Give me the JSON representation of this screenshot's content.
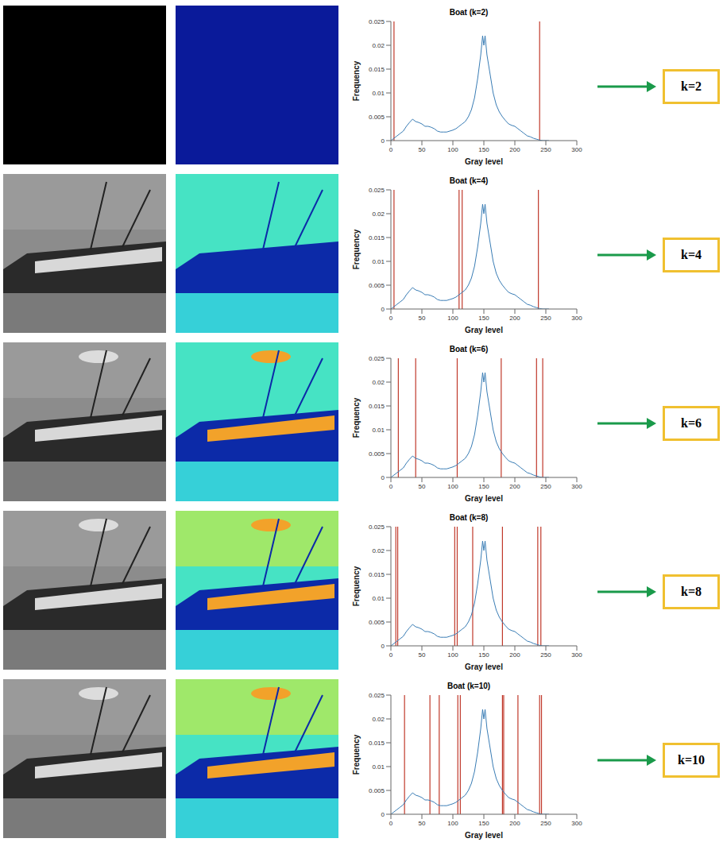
{
  "chart_data": [
    {
      "type": "line",
      "title": "Boat (k=2)",
      "annotation": "k=2",
      "xlabel": "Gray level",
      "ylabel": "Frequency",
      "color": "#3a7db5",
      "x": [
        0,
        5,
        10,
        15,
        20,
        25,
        30,
        35,
        40,
        45,
        50,
        55,
        60,
        65,
        70,
        75,
        80,
        85,
        90,
        95,
        100,
        105,
        110,
        115,
        120,
        125,
        130,
        135,
        140,
        145,
        148,
        150,
        152,
        155,
        160,
        165,
        170,
        175,
        180,
        185,
        190,
        195,
        200,
        205,
        210,
        215,
        220,
        225,
        230,
        235,
        240,
        245,
        250,
        255
      ],
      "values": [
        0,
        0.0005,
        0.001,
        0.0015,
        0.002,
        0.003,
        0.0038,
        0.0045,
        0.004,
        0.0038,
        0.0035,
        0.003,
        0.003,
        0.0028,
        0.0025,
        0.002,
        0.0018,
        0.0018,
        0.0018,
        0.002,
        0.0022,
        0.0025,
        0.003,
        0.0035,
        0.004,
        0.005,
        0.0065,
        0.009,
        0.013,
        0.018,
        0.022,
        0.02,
        0.022,
        0.018,
        0.014,
        0.01,
        0.0075,
        0.006,
        0.005,
        0.0042,
        0.0035,
        0.0032,
        0.003,
        0.0025,
        0.002,
        0.0015,
        0.001,
        0.0008,
        0.0005,
        0.0003,
        0.0001,
        0,
        0,
        0
      ],
      "thresholds": [
        5,
        240
      ],
      "xlim": [
        0,
        300
      ],
      "xticks": [
        0,
        50,
        100,
        150,
        200,
        250,
        300
      ],
      "ylim": [
        0,
        0.025
      ],
      "yticks": [
        0,
        0.005,
        0.01,
        0.015,
        0.02,
        0.025
      ]
    },
    {
      "type": "line",
      "title": "Boat (k=4)",
      "annotation": "k=4",
      "xlabel": "Gray level",
      "ylabel": "Frequency",
      "color": "#3a7db5",
      "x": [
        0,
        5,
        10,
        15,
        20,
        25,
        30,
        35,
        40,
        45,
        50,
        55,
        60,
        65,
        70,
        75,
        80,
        85,
        90,
        95,
        100,
        105,
        110,
        115,
        120,
        125,
        130,
        135,
        140,
        145,
        148,
        150,
        152,
        155,
        160,
        165,
        170,
        175,
        180,
        185,
        190,
        195,
        200,
        205,
        210,
        215,
        220,
        225,
        230,
        235,
        240,
        245,
        250,
        255
      ],
      "values": [
        0,
        0.0005,
        0.001,
        0.0015,
        0.002,
        0.003,
        0.0038,
        0.0045,
        0.004,
        0.0038,
        0.0035,
        0.003,
        0.003,
        0.0028,
        0.0025,
        0.002,
        0.0018,
        0.0018,
        0.0018,
        0.002,
        0.0022,
        0.0025,
        0.003,
        0.0035,
        0.004,
        0.005,
        0.0065,
        0.009,
        0.013,
        0.018,
        0.022,
        0.02,
        0.022,
        0.018,
        0.014,
        0.01,
        0.0075,
        0.006,
        0.005,
        0.0042,
        0.0035,
        0.0032,
        0.003,
        0.0025,
        0.002,
        0.0015,
        0.001,
        0.0008,
        0.0005,
        0.0003,
        0.0001,
        0,
        0,
        0
      ],
      "thresholds": [
        5,
        110,
        115,
        238
      ],
      "xlim": [
        0,
        300
      ],
      "xticks": [
        0,
        50,
        100,
        150,
        200,
        250,
        300
      ],
      "ylim": [
        0,
        0.025
      ],
      "yticks": [
        0,
        0.005,
        0.01,
        0.015,
        0.02,
        0.025
      ]
    },
    {
      "type": "line",
      "title": "Boat (k=6)",
      "annotation": "k=6",
      "xlabel": "Gray level",
      "ylabel": "Frequency",
      "color": "#3a7db5",
      "x": [
        0,
        5,
        10,
        15,
        20,
        25,
        30,
        35,
        40,
        45,
        50,
        55,
        60,
        65,
        70,
        75,
        80,
        85,
        90,
        95,
        100,
        105,
        110,
        115,
        120,
        125,
        130,
        135,
        140,
        145,
        148,
        150,
        152,
        155,
        160,
        165,
        170,
        175,
        180,
        185,
        190,
        195,
        200,
        205,
        210,
        215,
        220,
        225,
        230,
        235,
        240,
        245,
        250,
        255
      ],
      "values": [
        0,
        0.0005,
        0.001,
        0.0015,
        0.002,
        0.003,
        0.0038,
        0.0045,
        0.004,
        0.0038,
        0.0035,
        0.003,
        0.003,
        0.0028,
        0.0025,
        0.002,
        0.0018,
        0.0018,
        0.0018,
        0.002,
        0.0022,
        0.0025,
        0.003,
        0.0035,
        0.004,
        0.005,
        0.0065,
        0.009,
        0.013,
        0.018,
        0.022,
        0.02,
        0.022,
        0.018,
        0.014,
        0.01,
        0.0075,
        0.006,
        0.005,
        0.0042,
        0.0035,
        0.0032,
        0.003,
        0.0025,
        0.002,
        0.0015,
        0.001,
        0.0008,
        0.0005,
        0.0003,
        0.0001,
        0,
        0,
        0
      ],
      "thresholds": [
        12,
        40,
        107,
        178,
        235,
        245
      ],
      "xlim": [
        0,
        300
      ],
      "xticks": [
        0,
        50,
        100,
        150,
        200,
        250,
        300
      ],
      "ylim": [
        0,
        0.025
      ],
      "yticks": [
        0,
        0.005,
        0.01,
        0.015,
        0.02,
        0.025
      ]
    },
    {
      "type": "line",
      "title": "Boat (k=8)",
      "annotation": "k=8",
      "xlabel": "Gray level",
      "ylabel": "Frequency",
      "color": "#3a7db5",
      "x": [
        0,
        5,
        10,
        15,
        20,
        25,
        30,
        35,
        40,
        45,
        50,
        55,
        60,
        65,
        70,
        75,
        80,
        85,
        90,
        95,
        100,
        105,
        110,
        115,
        120,
        125,
        130,
        135,
        140,
        145,
        148,
        150,
        152,
        155,
        160,
        165,
        170,
        175,
        180,
        185,
        190,
        195,
        200,
        205,
        210,
        215,
        220,
        225,
        230,
        235,
        240,
        245,
        250,
        255
      ],
      "values": [
        0,
        0.0005,
        0.001,
        0.0015,
        0.002,
        0.003,
        0.0038,
        0.0045,
        0.004,
        0.0038,
        0.0035,
        0.003,
        0.003,
        0.0028,
        0.0025,
        0.002,
        0.0018,
        0.0018,
        0.0018,
        0.002,
        0.0022,
        0.0025,
        0.003,
        0.0035,
        0.004,
        0.005,
        0.0065,
        0.009,
        0.013,
        0.018,
        0.022,
        0.02,
        0.022,
        0.018,
        0.014,
        0.01,
        0.0075,
        0.006,
        0.005,
        0.0042,
        0.0035,
        0.0032,
        0.003,
        0.0025,
        0.002,
        0.0015,
        0.001,
        0.0008,
        0.0005,
        0.0003,
        0.0001,
        0,
        0,
        0
      ],
      "thresholds": [
        8,
        11,
        103,
        107,
        132,
        180,
        237,
        242
      ],
      "xlim": [
        0,
        300
      ],
      "xticks": [
        0,
        50,
        100,
        150,
        200,
        250,
        300
      ],
      "ylim": [
        0,
        0.025
      ],
      "yticks": [
        0,
        0.005,
        0.01,
        0.015,
        0.02,
        0.025
      ]
    },
    {
      "type": "line",
      "title": "Boat (k=10)",
      "annotation": "k=10",
      "xlabel": "Gray level",
      "ylabel": "Frequency",
      "color": "#3a7db5",
      "x": [
        0,
        5,
        10,
        15,
        20,
        25,
        30,
        35,
        40,
        45,
        50,
        55,
        60,
        65,
        70,
        75,
        80,
        85,
        90,
        95,
        100,
        105,
        110,
        115,
        120,
        125,
        130,
        135,
        140,
        145,
        148,
        150,
        152,
        155,
        160,
        165,
        170,
        175,
        180,
        185,
        190,
        195,
        200,
        205,
        210,
        215,
        220,
        225,
        230,
        235,
        240,
        245,
        250,
        255
      ],
      "values": [
        0,
        0.0005,
        0.001,
        0.0015,
        0.002,
        0.003,
        0.0038,
        0.0045,
        0.004,
        0.0038,
        0.0035,
        0.003,
        0.003,
        0.0028,
        0.0025,
        0.002,
        0.0018,
        0.0018,
        0.0018,
        0.002,
        0.0022,
        0.0025,
        0.003,
        0.0035,
        0.004,
        0.005,
        0.0065,
        0.009,
        0.013,
        0.018,
        0.022,
        0.02,
        0.022,
        0.018,
        0.014,
        0.01,
        0.0075,
        0.006,
        0.005,
        0.0042,
        0.0035,
        0.0032,
        0.003,
        0.0025,
        0.002,
        0.0015,
        0.001,
        0.0008,
        0.0005,
        0.0003,
        0.0001,
        0,
        0,
        0
      ],
      "thresholds": [
        22,
        63,
        78,
        108,
        112,
        180,
        182,
        205,
        240,
        243
      ],
      "xlim": [
        0,
        300
      ],
      "xticks": [
        0,
        50,
        100,
        150,
        200,
        250,
        300
      ],
      "ylim": [
        0,
        0.025
      ],
      "yticks": [
        0,
        0.005,
        0.01,
        0.015,
        0.02,
        0.025
      ]
    }
  ]
}
